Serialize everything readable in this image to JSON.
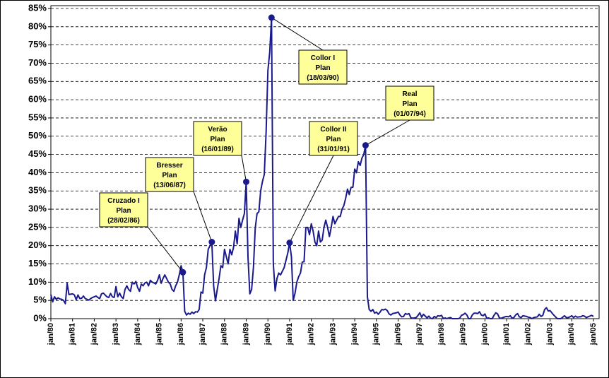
{
  "chart_data": {
    "type": "line",
    "categories": [
      "jan/80",
      null,
      null,
      null,
      null,
      null,
      null,
      null,
      null,
      null,
      null,
      null,
      "jan/81",
      null,
      null,
      null,
      null,
      null,
      null,
      null,
      null,
      null,
      null,
      null,
      "jan/82",
      null,
      null,
      null,
      null,
      null,
      null,
      null,
      null,
      null,
      null,
      null,
      "jan/83",
      null,
      null,
      null,
      null,
      null,
      null,
      null,
      null,
      null,
      null,
      null,
      "jan/84",
      null,
      null,
      null,
      null,
      null,
      null,
      null,
      null,
      null,
      null,
      null,
      "jan/85",
      null,
      null,
      null,
      null,
      null,
      null,
      null,
      null,
      null,
      null,
      null,
      "jan/86",
      null,
      null,
      null,
      null,
      null,
      null,
      null,
      null,
      null,
      null,
      null,
      "jan/87",
      null,
      null,
      null,
      null,
      null,
      null,
      null,
      null,
      null,
      null,
      null,
      "jan/88",
      null,
      null,
      null,
      null,
      null,
      null,
      null,
      null,
      null,
      null,
      null,
      "jan/89",
      null,
      null,
      null,
      null,
      null,
      null,
      null,
      null,
      null,
      null,
      null,
      "jan/90",
      null,
      null,
      null,
      null,
      null,
      null,
      null,
      null,
      null,
      null,
      null,
      "jan/91",
      null,
      null,
      null,
      null,
      null,
      null,
      null,
      null,
      null,
      null,
      null,
      "jan/92",
      null,
      null,
      null,
      null,
      null,
      null,
      null,
      null,
      null,
      null,
      null,
      "jan/93",
      null,
      null,
      null,
      null,
      null,
      null,
      null,
      null,
      null,
      null,
      null,
      "jan/94",
      null,
      null,
      null,
      null,
      null,
      null,
      null,
      null,
      null,
      null,
      null,
      "jan/95",
      null,
      null,
      null,
      null,
      null,
      null,
      null,
      null,
      null,
      null,
      null,
      "jan/96",
      null,
      null,
      null,
      null,
      null,
      null,
      null,
      null,
      null,
      null,
      null,
      "jan/97",
      null,
      null,
      null,
      null,
      null,
      null,
      null,
      null,
      null,
      null,
      null,
      "jan/98",
      null,
      null,
      null,
      null,
      null,
      null,
      null,
      null,
      null,
      null,
      null,
      "jan/99",
      null,
      null,
      null,
      null,
      null,
      null,
      null,
      null,
      null,
      null,
      null,
      "jan/00",
      null,
      null,
      null,
      null,
      null,
      null,
      null,
      null,
      null,
      null,
      null,
      "jan/01",
      null,
      null,
      null,
      null,
      null,
      null,
      null,
      null,
      null,
      null,
      null,
      "jan/02",
      null,
      null,
      null,
      null,
      null,
      null,
      null,
      null,
      null,
      null,
      null,
      "jan/03",
      null,
      null,
      null,
      null,
      null,
      null,
      null,
      null,
      null,
      null,
      null,
      "jan/04",
      null,
      null,
      null,
      null,
      null,
      null,
      null,
      null,
      null,
      null,
      null,
      "jan/05"
    ],
    "series": [
      {
        "color": "#1a1a8c",
        "values": [
          6.6,
          4.6,
          6.0,
          5.3,
          5.7,
          5.4,
          5.3,
          5.0,
          4.1,
          9.7,
          6.6,
          6.7,
          6.8,
          6.5,
          5.2,
          6.5,
          5.5,
          5.6,
          6.2,
          5.5,
          5.3,
          5.1,
          5.5,
          5.8,
          6.0,
          6.2,
          5.8,
          5.5,
          6.8,
          7.0,
          6.5,
          6.0,
          5.8,
          6.9,
          6.0,
          5.8,
          8.8,
          6.0,
          7.0,
          6.0,
          5.5,
          8.0,
          9.0,
          8.0,
          7.5,
          10.0,
          9.5,
          10.2,
          8.5,
          7.5,
          9.5,
          9.0,
          9.8,
          10.0,
          9.0,
          10.5,
          10.0,
          9.8,
          9.5,
          10.5,
          12.0,
          9.7,
          11.0,
          12.0,
          11.0,
          10.0,
          9.5,
          8.0,
          7.5,
          9.0,
          10.0,
          12.0,
          14.5,
          12.7,
          2.0,
          1.0,
          1.5,
          1.2,
          1.8,
          1.4,
          1.9,
          1.8,
          2.5,
          7.3,
          7.0,
          12.0,
          14.0,
          19.0,
          20.0,
          21.0,
          9.0,
          4.9,
          8.0,
          11.0,
          14.5,
          14.0,
          19.0,
          17.0,
          15.0,
          19.0,
          17.5,
          19.5,
          24.0,
          20.5,
          27.5,
          25.0,
          27.0,
          28.8,
          37.5,
          16.8,
          6.8,
          8.0,
          14.0,
          24.8,
          28.8,
          29.3,
          35.0,
          37.6,
          39.5,
          51.0,
          68.0,
          73.0,
          82.5,
          15.0,
          7.6,
          11.0,
          12.5,
          12.0,
          13.0,
          14.0,
          16.0,
          18.0,
          20.8,
          17.0,
          5.0,
          7.0,
          10.0,
          11.5,
          12.5,
          15.5,
          15.6,
          25.0,
          25.0,
          23.0,
          26.0,
          24.0,
          21.0,
          20.0,
          24.0,
          21.0,
          21.5,
          25.0,
          27.0,
          25.0,
          22.5,
          25.0,
          28.0,
          26.0,
          27.0,
          28.0,
          28.0,
          30.0,
          31.0,
          33.0,
          35.5,
          34.0,
          36.0,
          36.0,
          41.0,
          40.0,
          43.0,
          42.0,
          44.0,
          45.0,
          47.5,
          6.0,
          2.5,
          2.0,
          2.5,
          1.5,
          1.8,
          1.2,
          1.8,
          2.5,
          2.4,
          2.6,
          2.2,
          1.3,
          1.0,
          1.4,
          1.5,
          1.6,
          1.8,
          1.0,
          0.5,
          0.6,
          1.4,
          1.2,
          1.4,
          0.3,
          0.1,
          0.2,
          0.3,
          0.9,
          1.6,
          0.4,
          1.2,
          0.7,
          0.2,
          0.7,
          0.1,
          0.0,
          0.6,
          0.3,
          0.8,
          0.7,
          0.9,
          0.0,
          0.2,
          0.0,
          0.2,
          0.3,
          0.0,
          0.0,
          0.0,
          0.0,
          0.1,
          0.9,
          1.1,
          1.5,
          1.0,
          0.0,
          0.0,
          1.0,
          1.5,
          1.5,
          1.4,
          1.9,
          1.0,
          0.8,
          1.3,
          0.1,
          0.2,
          0.0,
          0.0,
          0.9,
          1.6,
          1.3,
          0.2,
          0.1,
          0.3,
          0.5,
          0.6,
          0.5,
          0.8,
          0.1,
          0.3,
          1.0,
          1.4,
          0.5,
          0.3,
          0.8,
          0.7,
          0.6,
          0.4,
          0.3,
          0.0,
          0.3,
          0.4,
          0.5,
          1.2,
          0.6,
          0.9,
          2.5,
          3.0,
          2.1,
          2.2,
          1.6,
          1.0,
          0.5,
          0.0,
          0.0,
          0.0,
          0.4,
          0.8,
          0.3,
          0.3,
          0.5,
          0.8,
          0.3,
          0.7,
          0.4,
          0.5,
          0.5,
          0.8,
          0.7,
          0.3,
          0.5,
          0.7,
          0.9,
          0.6
        ]
      }
    ],
    "ylim": [
      0,
      85
    ],
    "yticks": [
      {
        "value": 0,
        "label": "0%"
      },
      {
        "value": 5,
        "label": "5%"
      },
      {
        "value": 10,
        "label": "10%"
      },
      {
        "value": 15,
        "label": "15%"
      },
      {
        "value": 20,
        "label": "20%"
      },
      {
        "value": 25,
        "label": "25%"
      },
      {
        "value": 30,
        "label": "30%"
      },
      {
        "value": 35,
        "label": "35%"
      },
      {
        "value": 40,
        "label": "40%"
      },
      {
        "value": 45,
        "label": "45%"
      },
      {
        "value": 50,
        "label": "50%"
      },
      {
        "value": 55,
        "label": "55%"
      },
      {
        "value": 60,
        "label": "60%"
      },
      {
        "value": 65,
        "label": "65%"
      },
      {
        "value": 70,
        "label": "70%"
      },
      {
        "value": 75,
        "label": "75%"
      },
      {
        "value": 80,
        "label": "80%"
      },
      {
        "value": 85,
        "label": "85%"
      }
    ],
    "grid": true,
    "annotations": [
      {
        "index": 73,
        "lines": [
          "Cruzado I",
          "Plan",
          "(28/02/86)"
        ]
      },
      {
        "index": 89,
        "lines": [
          "Bresser",
          "Plan",
          "(13/06/87)"
        ]
      },
      {
        "index": 108,
        "lines": [
          "Verão",
          "Plan",
          "(16/01/89)"
        ]
      },
      {
        "index": 122,
        "lines": [
          "Collor I",
          "Plan",
          "(18/03/90)"
        ]
      },
      {
        "index": 132,
        "lines": [
          "Collor II",
          "Plan",
          "(31/01/91)"
        ]
      },
      {
        "index": 174,
        "lines": [
          "Real",
          "Plan",
          "(01/07/94)"
        ]
      }
    ]
  }
}
